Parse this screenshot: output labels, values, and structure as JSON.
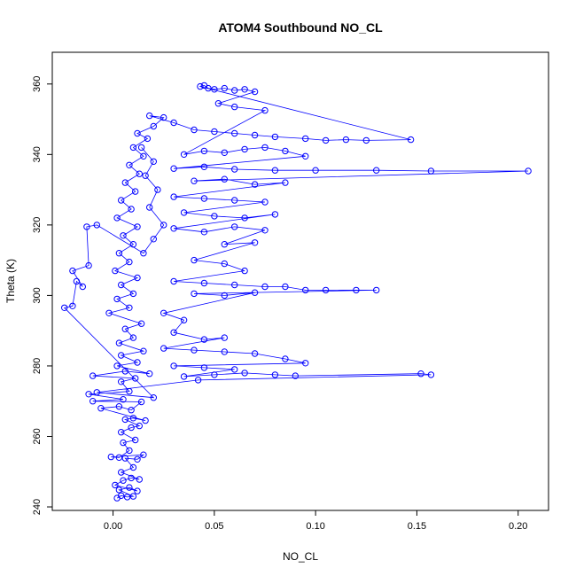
{
  "chart_data": {
    "type": "scatter",
    "title": "ATOM4 Southbound NO_CL",
    "xlabel": "NO_CL",
    "ylabel": "Theta (K)",
    "xlim": [
      -0.03,
      0.215
    ],
    "ylim": [
      239,
      369
    ],
    "xticks": [
      0.0,
      0.05,
      0.1,
      0.15,
      0.2
    ],
    "xtick_labels": [
      "0.00",
      "0.05",
      "0.10",
      "0.15",
      "0.20"
    ],
    "yticks": [
      240,
      260,
      280,
      300,
      320,
      340,
      360
    ],
    "ytick_labels": [
      "240",
      "260",
      "280",
      "300",
      "320",
      "340",
      "360"
    ],
    "grid": false,
    "legend": "none",
    "color": "#0000ff",
    "marker": "open-circle",
    "connected": true,
    "points": [
      [
        0.002,
        242.5
      ],
      [
        0.004,
        243.2
      ],
      [
        0.007,
        242.8
      ],
      [
        0.01,
        243.0
      ],
      [
        0.003,
        244.8
      ],
      [
        0.008,
        245.5
      ],
      [
        0.012,
        244.5
      ],
      [
        0.001,
        246.2
      ],
      [
        0.005,
        247.5
      ],
      [
        0.009,
        248.2
      ],
      [
        0.013,
        247.8
      ],
      [
        0.004,
        249.8
      ],
      [
        0.01,
        251.2
      ],
      [
        0.006,
        253.8
      ],
      [
        0.012,
        253.5
      ],
      [
        0.015,
        254.8
      ],
      [
        -0.001,
        254.2
      ],
      [
        0.003,
        254.0
      ],
      [
        0.008,
        256.0
      ],
      [
        0.005,
        258.2
      ],
      [
        0.011,
        259.0
      ],
      [
        0.004,
        261.2
      ],
      [
        0.009,
        262.5
      ],
      [
        0.013,
        263.0
      ],
      [
        0.006,
        264.8
      ],
      [
        0.01,
        265.2
      ],
      [
        0.016,
        264.5
      ],
      [
        -0.006,
        268.0
      ],
      [
        0.003,
        268.5
      ],
      [
        0.009,
        267.5
      ],
      [
        0.014,
        269.8
      ],
      [
        -0.01,
        270.0
      ],
      [
        0.005,
        270.5
      ],
      [
        -0.012,
        272.0
      ],
      [
        0.008,
        272.8
      ],
      [
        0.004,
        275.5
      ],
      [
        0.011,
        276.5
      ],
      [
        -0.01,
        277.2
      ],
      [
        0.006,
        278.5
      ],
      [
        0.018,
        277.8
      ],
      [
        0.002,
        280.0
      ],
      [
        0.012,
        281.0
      ],
      [
        0.004,
        283.0
      ],
      [
        0.015,
        284.2
      ],
      [
        0.003,
        286.5
      ],
      [
        0.01,
        288.0
      ],
      [
        0.006,
        290.5
      ],
      [
        0.014,
        292.0
      ],
      [
        -0.002,
        295.0
      ],
      [
        0.008,
        296.5
      ],
      [
        0.002,
        299.0
      ],
      [
        0.01,
        300.5
      ],
      [
        0.004,
        303.0
      ],
      [
        0.012,
        305.0
      ],
      [
        0.001,
        307.0
      ],
      [
        0.008,
        309.5
      ],
      [
        0.003,
        312.0
      ],
      [
        0.01,
        314.5
      ],
      [
        0.005,
        317.0
      ],
      [
        0.012,
        319.5
      ],
      [
        0.002,
        322.0
      ],
      [
        0.009,
        324.5
      ],
      [
        0.004,
        327.0
      ],
      [
        0.011,
        329.5
      ],
      [
        0.006,
        332.0
      ],
      [
        0.013,
        334.5
      ],
      [
        0.008,
        337.0
      ],
      [
        0.015,
        339.5
      ],
      [
        0.01,
        342.0
      ],
      [
        0.017,
        344.5
      ],
      [
        0.012,
        346.0
      ],
      [
        0.02,
        348.0
      ],
      [
        0.025,
        350.5
      ],
      [
        0.018,
        351.0
      ],
      [
        0.03,
        349.0
      ],
      [
        0.04,
        347.0
      ],
      [
        0.05,
        346.5
      ],
      [
        0.06,
        346.0
      ],
      [
        0.07,
        345.5
      ],
      [
        0.08,
        345.0
      ],
      [
        0.095,
        344.5
      ],
      [
        0.105,
        344.0
      ],
      [
        0.115,
        344.2
      ],
      [
        0.125,
        344.0
      ],
      [
        0.147,
        344.2
      ],
      [
        0.043,
        359.3
      ],
      [
        0.045,
        359.6
      ],
      [
        0.047,
        358.8
      ],
      [
        0.05,
        358.5
      ],
      [
        0.055,
        358.8
      ],
      [
        0.06,
        358.2
      ],
      [
        0.065,
        358.5
      ],
      [
        0.07,
        357.8
      ],
      [
        0.052,
        354.5
      ],
      [
        0.06,
        353.5
      ],
      [
        0.075,
        352.5
      ],
      [
        0.035,
        340.0
      ],
      [
        0.045,
        341.0
      ],
      [
        0.055,
        340.5
      ],
      [
        0.065,
        341.5
      ],
      [
        0.075,
        342.0
      ],
      [
        0.085,
        341.0
      ],
      [
        0.095,
        339.5
      ],
      [
        0.03,
        336.0
      ],
      [
        0.045,
        336.5
      ],
      [
        0.06,
        335.8
      ],
      [
        0.08,
        335.5
      ],
      [
        0.1,
        335.5
      ],
      [
        0.13,
        335.5
      ],
      [
        0.157,
        335.3
      ],
      [
        0.205,
        335.3
      ],
      [
        0.04,
        332.5
      ],
      [
        0.055,
        333.0
      ],
      [
        0.07,
        331.5
      ],
      [
        0.085,
        332.0
      ],
      [
        0.03,
        328.0
      ],
      [
        0.045,
        327.5
      ],
      [
        0.06,
        327.0
      ],
      [
        0.075,
        326.5
      ],
      [
        0.035,
        323.5
      ],
      [
        0.05,
        322.5
      ],
      [
        0.065,
        322.0
      ],
      [
        0.08,
        323.0
      ],
      [
        0.03,
        319.0
      ],
      [
        0.045,
        318.0
      ],
      [
        0.06,
        319.5
      ],
      [
        0.075,
        318.5
      ],
      [
        0.055,
        314.5
      ],
      [
        0.07,
        315.0
      ],
      [
        0.04,
        310.0
      ],
      [
        0.055,
        309.0
      ],
      [
        0.065,
        307.0
      ],
      [
        0.03,
        304.0
      ],
      [
        0.045,
        303.5
      ],
      [
        0.06,
        303.0
      ],
      [
        0.075,
        302.5
      ],
      [
        0.085,
        302.5
      ],
      [
        0.095,
        301.5
      ],
      [
        0.105,
        301.5
      ],
      [
        0.12,
        301.5
      ],
      [
        0.13,
        301.5
      ],
      [
        0.04,
        300.5
      ],
      [
        0.055,
        300.0
      ],
      [
        0.07,
        300.8
      ],
      [
        0.025,
        295.0
      ],
      [
        0.035,
        293.0
      ],
      [
        0.03,
        289.5
      ],
      [
        0.045,
        287.5
      ],
      [
        0.055,
        288.0
      ],
      [
        0.025,
        285.0
      ],
      [
        0.04,
        284.5
      ],
      [
        0.055,
        284.0
      ],
      [
        0.07,
        283.5
      ],
      [
        0.085,
        282.0
      ],
      [
        0.095,
        280.8
      ],
      [
        0.03,
        280.0
      ],
      [
        0.045,
        279.5
      ],
      [
        0.06,
        279.0
      ],
      [
        0.035,
        277.0
      ],
      [
        0.05,
        277.5
      ],
      [
        0.065,
        278.0
      ],
      [
        0.08,
        277.5
      ],
      [
        0.09,
        277.2
      ],
      [
        0.152,
        277.8
      ],
      [
        0.157,
        277.5
      ],
      [
        0.042,
        276.0
      ],
      [
        -0.008,
        272.5
      ],
      [
        0.02,
        271.0
      ],
      [
        -0.024,
        296.5
      ],
      [
        -0.02,
        297.0
      ],
      [
        -0.018,
        304.0
      ],
      [
        -0.015,
        302.5
      ],
      [
        -0.02,
        307.0
      ],
      [
        -0.012,
        308.5
      ],
      [
        -0.013,
        319.5
      ],
      [
        -0.008,
        320.0
      ],
      [
        0.015,
        312.0
      ],
      [
        0.02,
        316.0
      ],
      [
        0.025,
        320.0
      ],
      [
        0.018,
        325.0
      ],
      [
        0.022,
        330.0
      ],
      [
        0.016,
        334.0
      ],
      [
        0.02,
        338.0
      ],
      [
        0.014,
        342.0
      ]
    ]
  }
}
